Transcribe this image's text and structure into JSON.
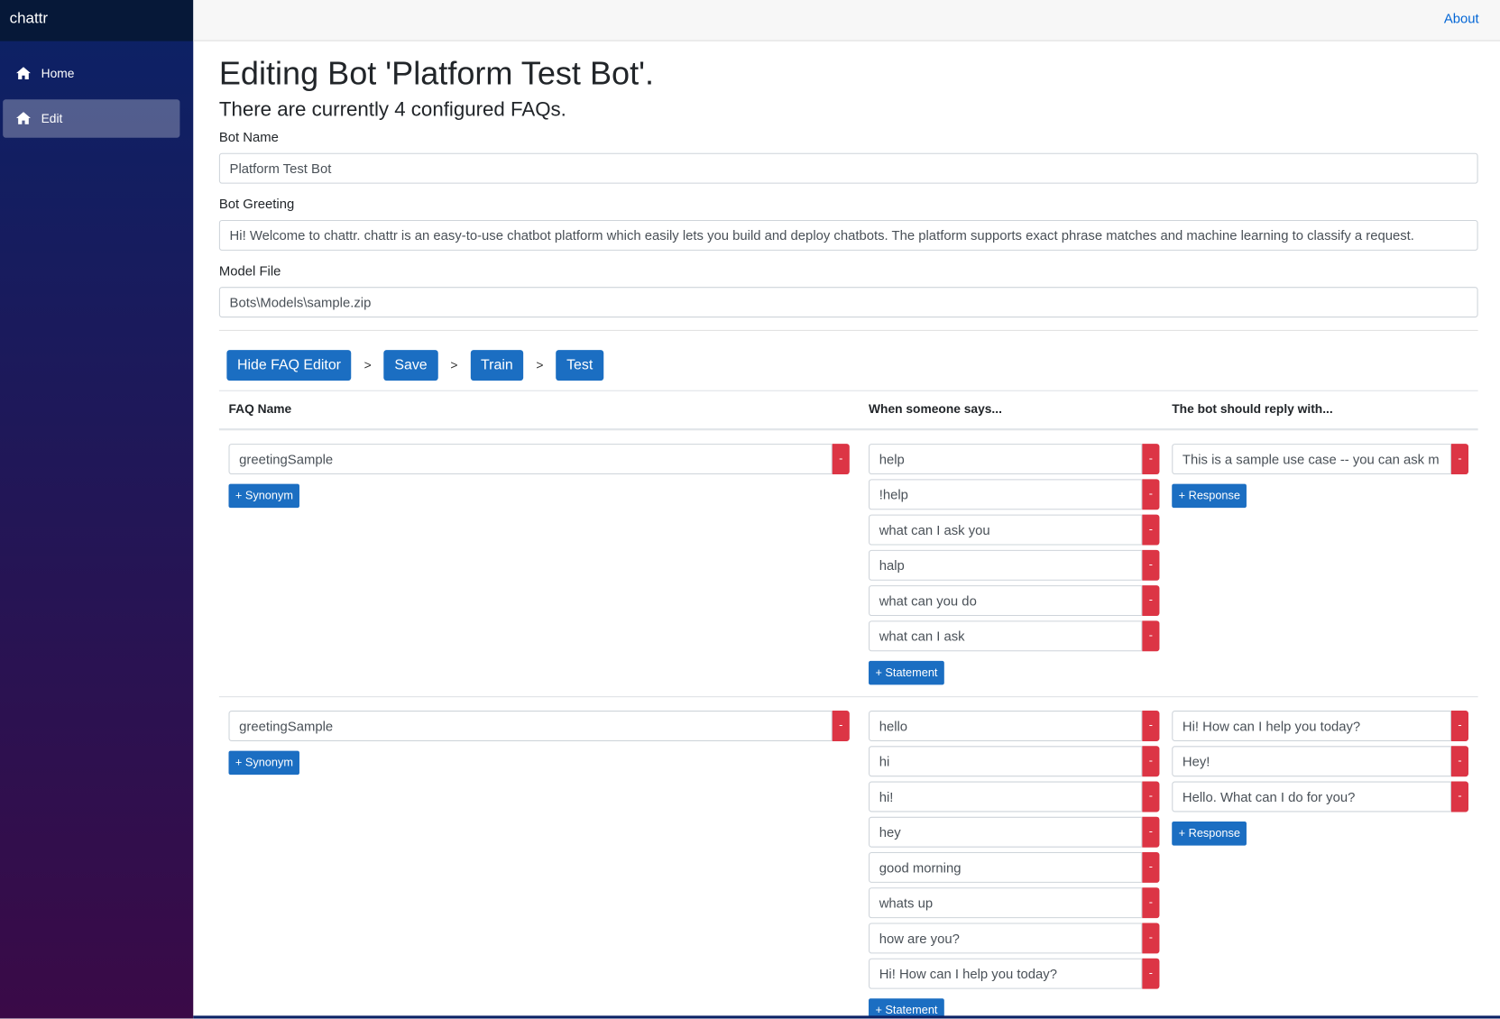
{
  "sidebar": {
    "brand": "chattr",
    "nav": [
      {
        "label": "Home"
      },
      {
        "label": "Edit"
      }
    ]
  },
  "topbar": {
    "link": "About"
  },
  "header": {
    "title": "Editing Bot 'Platform Test Bot'.",
    "subtitle": "There are currently 4 configured FAQs."
  },
  "form": {
    "fields": [
      {
        "label": "Bot Name",
        "value": "Platform Test Bot"
      },
      {
        "label": "Bot Greeting",
        "value": "Hi! Welcome to chattr.  chattr is an easy-to-use chatbot platform which easily lets you build and deploy chatbots.  The platform supports exact phrase matches and machine learning to classify a request."
      },
      {
        "label": "Model File",
        "value": "Bots\\Models\\sample.zip"
      }
    ]
  },
  "toolbar": {
    "buttons": [
      "Hide FAQ Editor",
      "Save",
      "Train",
      "Test"
    ],
    "separator": ">"
  },
  "faq_table": {
    "headers": [
      "FAQ Name",
      "When someone says...",
      "The bot should reply with..."
    ],
    "remove_button": "-",
    "synonym_button": "+ Synonym",
    "statement_button": "+ Statement",
    "response_button": "+ Response",
    "rows": [
      {
        "name": "greetingSample",
        "statements": [
          "help",
          "!help",
          "what can I ask you",
          "halp",
          "what can you do",
          "what can I ask"
        ],
        "responses": [
          "This is a sample use case -- you can ask m"
        ]
      },
      {
        "name": "greetingSample",
        "statements": [
          "hello",
          "hi",
          "hi!",
          "hey",
          "good morning",
          "whats up",
          "how are you?",
          "Hi! How can I help you today?"
        ],
        "responses": [
          "Hi! How can I help you today?",
          "Hey!",
          "Hello. What can I do for you?"
        ]
      }
    ]
  }
}
